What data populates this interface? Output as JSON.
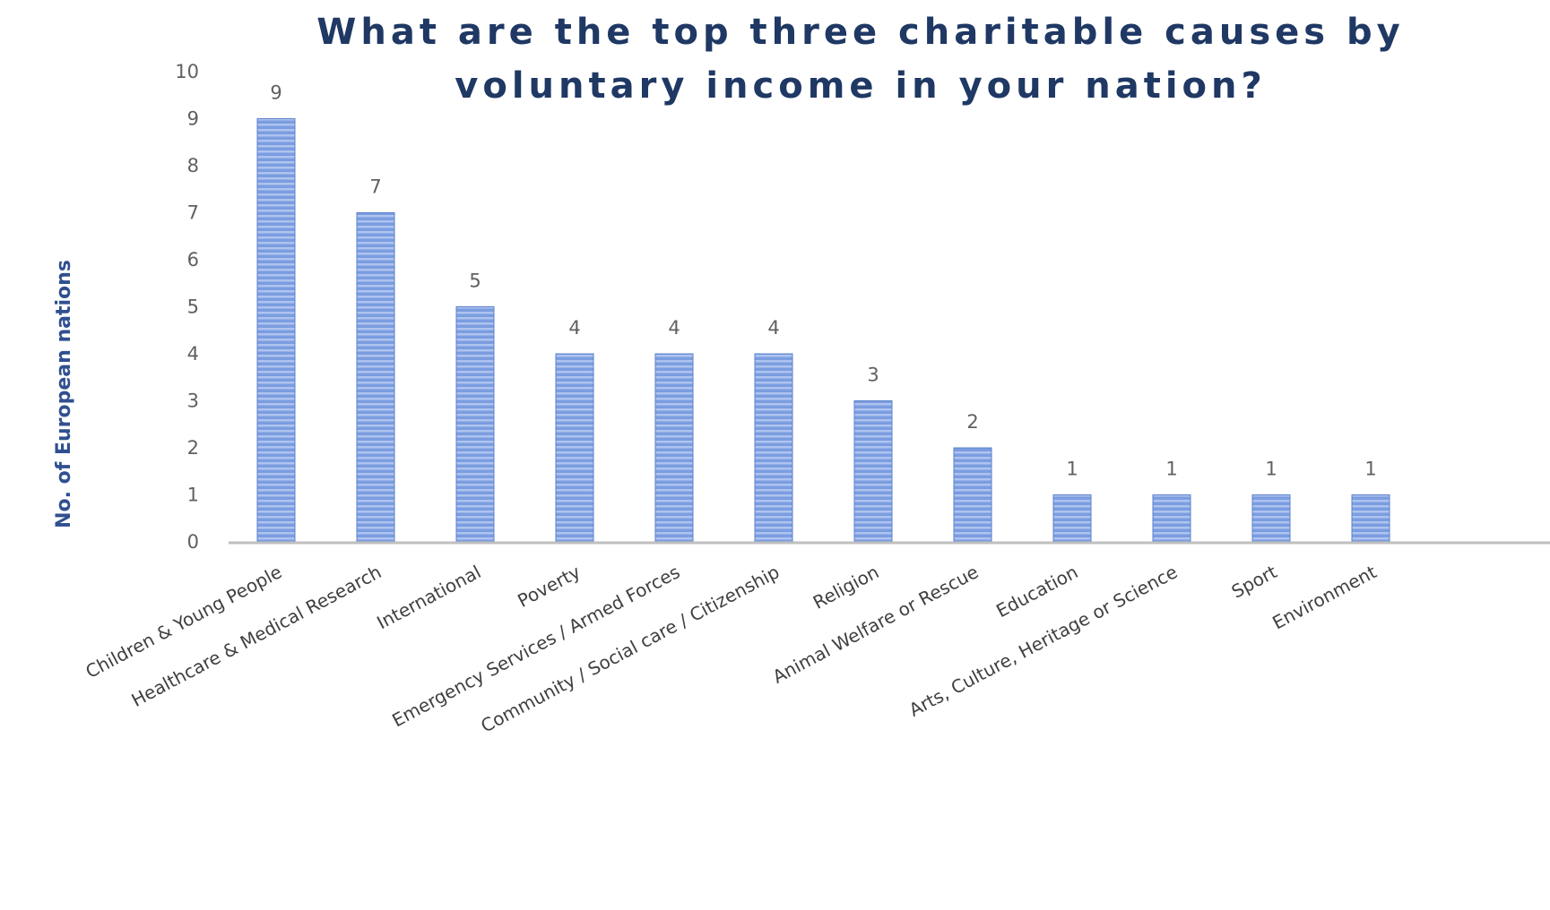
{
  "chart_data": {
    "type": "bar",
    "title": "What are the top three charitable causes by voluntary income in your nation?",
    "xlabel": "",
    "ylabel": "No. of European nations",
    "categories": [
      "Children & Young People",
      "Healthcare & Medical Research",
      "International",
      "Poverty",
      "Emergency Services / Armed Forces",
      "Community / Social care / Citizenship",
      "Religion",
      "Animal Welfare or Rescue",
      "Education",
      "Arts, Culture, Heritage or Science",
      "Sport",
      "Environment"
    ],
    "values": [
      9,
      7,
      5,
      4,
      4,
      4,
      3,
      2,
      1,
      1,
      1,
      1
    ],
    "ylim": [
      0,
      10
    ],
    "yticks": [
      0,
      1,
      2,
      3,
      4,
      5,
      6,
      7,
      8,
      9,
      10
    ],
    "data_labels": true,
    "grid": false,
    "legend": "none",
    "colors": {
      "bar": "#7b9de0",
      "bar_stripe": "#aec3ef",
      "bar_edge": "#5b80cc",
      "title": "#1f3864",
      "ylabel": "#2f4f8f",
      "tick": "#606060",
      "axis": "#bfbfbf"
    }
  }
}
